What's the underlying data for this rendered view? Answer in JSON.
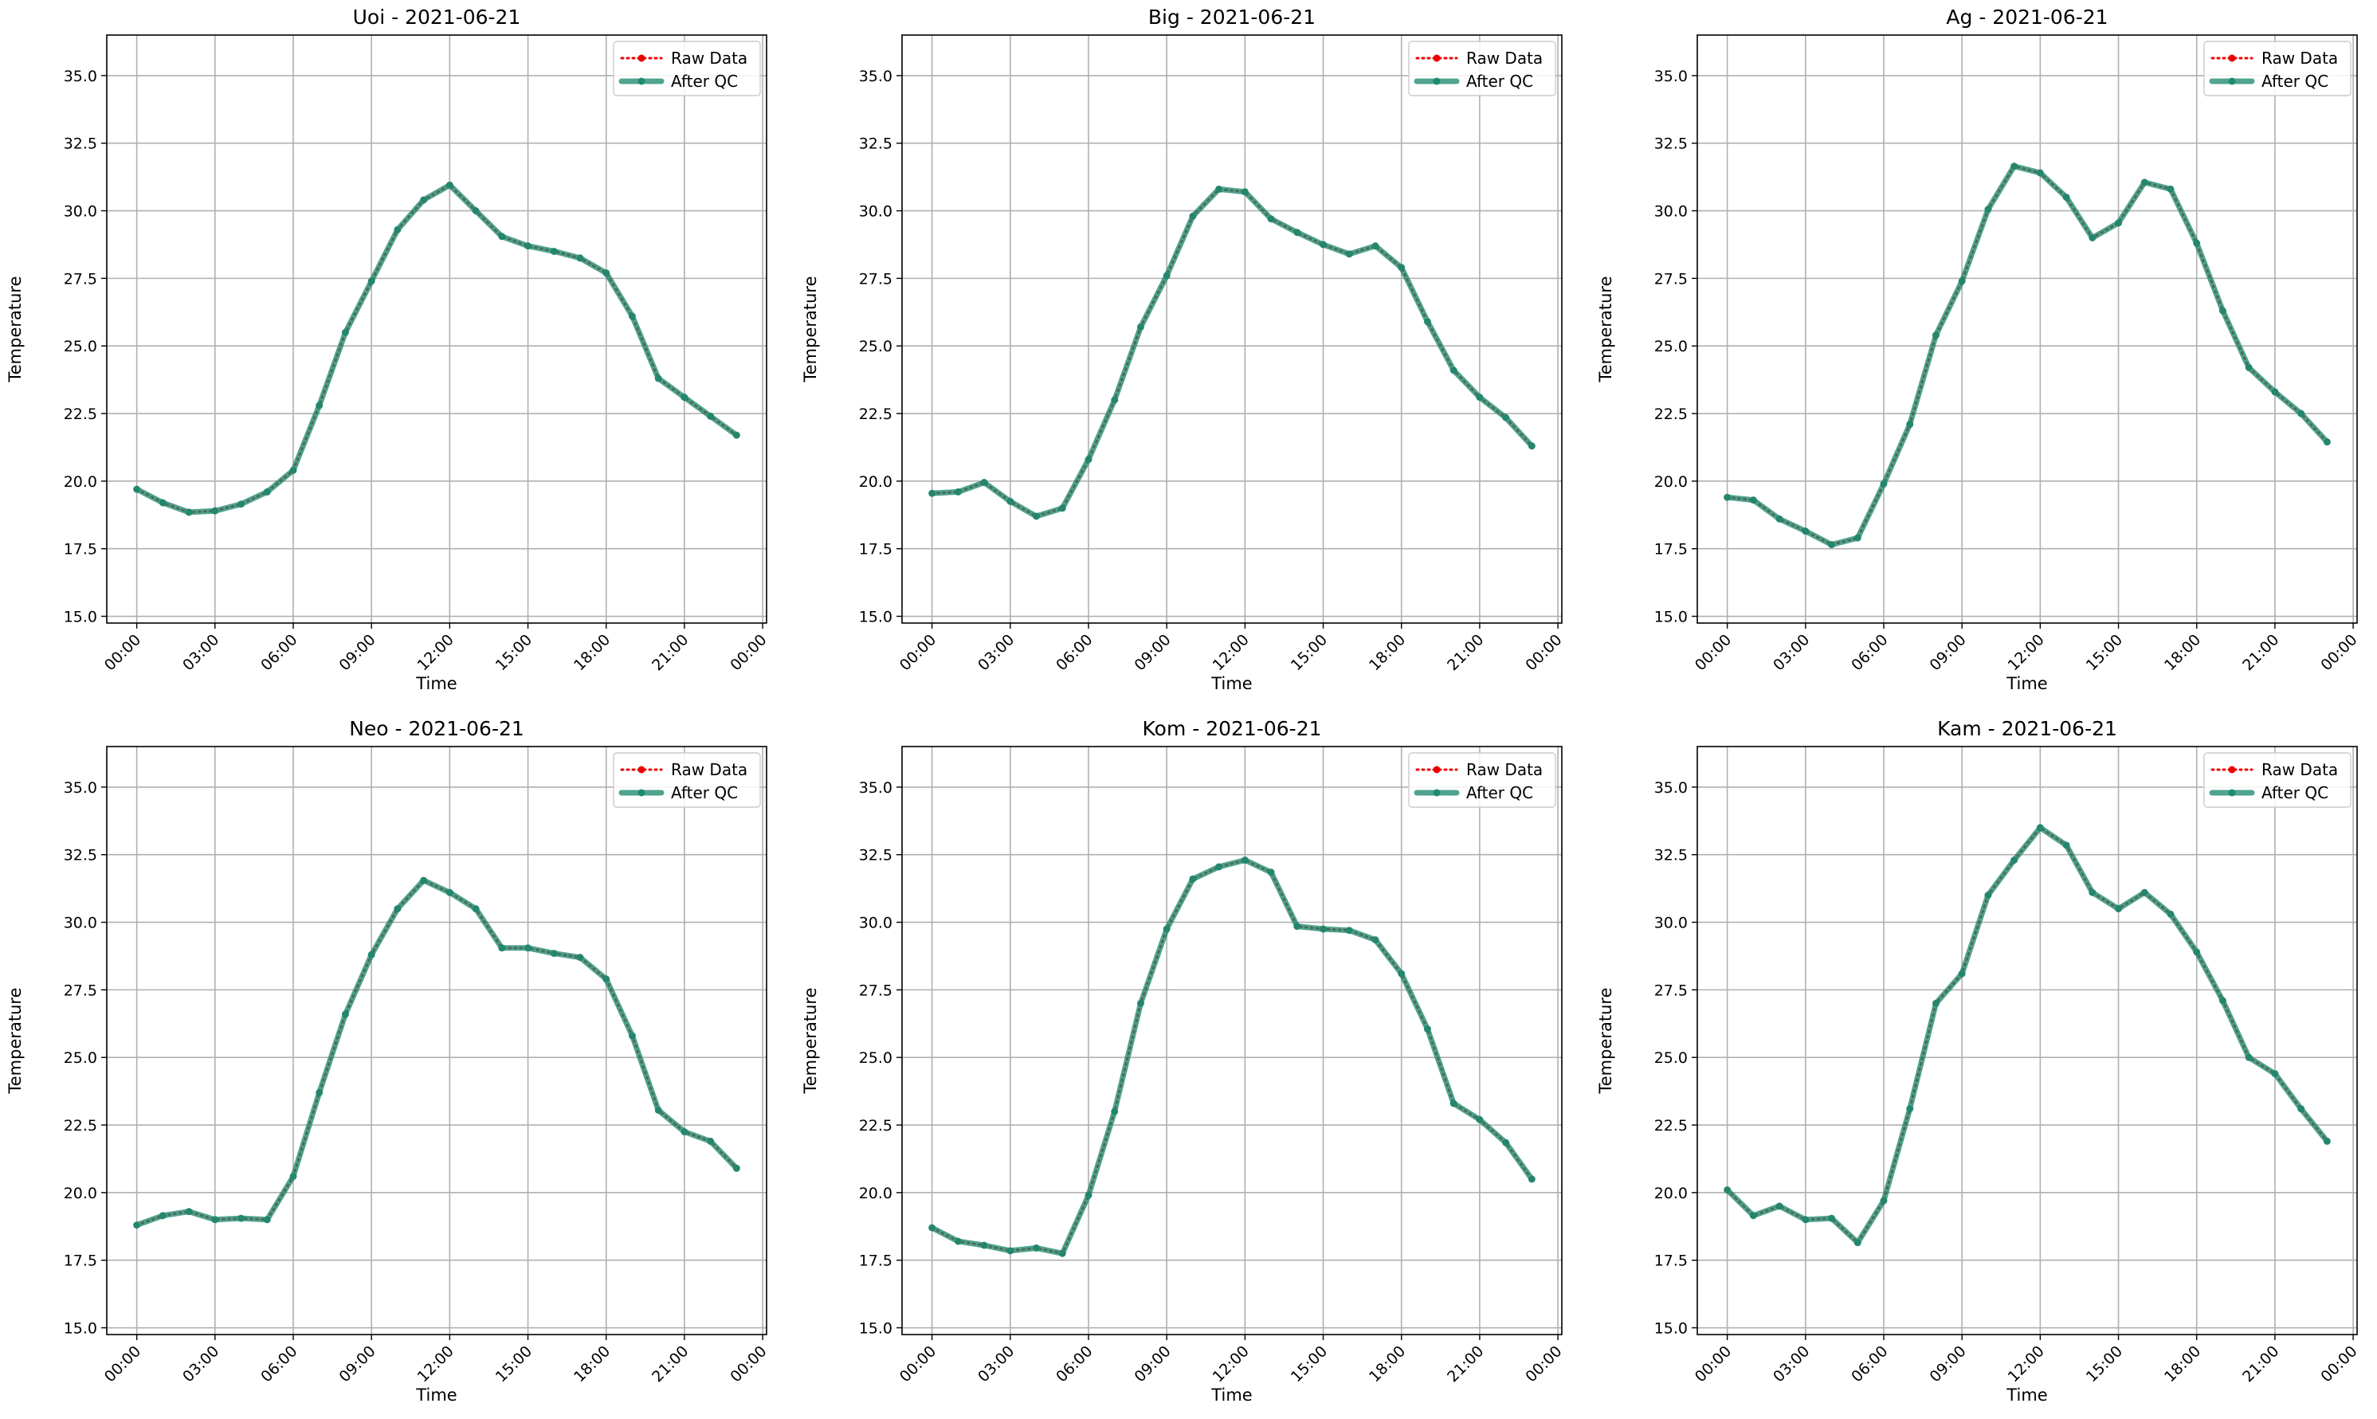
{
  "legend_labels": {
    "raw": "Raw Data",
    "qc": "After QC"
  },
  "colors": {
    "raw": "#ee0000",
    "qc": "#1f8a70",
    "grid": "#b0b0b0",
    "frame": "#000000",
    "legend_border": "#cccccc"
  },
  "chart_data": [
    {
      "type": "line",
      "title": "Uoi - 2021-06-21",
      "xlabel": "Time",
      "ylabel": "Temperature",
      "xlim_hours": [
        -1.15,
        24.15
      ],
      "ylim": [
        14.75,
        36.5
      ],
      "xticks": [
        "00:00",
        "03:00",
        "06:00",
        "09:00",
        "12:00",
        "15:00",
        "18:00",
        "21:00",
        "00:00"
      ],
      "yticks": [
        "15.0",
        "17.5",
        "20.0",
        "22.5",
        "25.0",
        "27.5",
        "30.0",
        "32.5",
        "35.0"
      ],
      "grid": true,
      "legend_position": "upper right",
      "x_hours": [
        0,
        1,
        2,
        3,
        4,
        5,
        6,
        7,
        8,
        9,
        10,
        11,
        12,
        13,
        14,
        15,
        16,
        17,
        18,
        19,
        20,
        21,
        22,
        23
      ],
      "series": [
        {
          "name": "Raw Data",
          "values": [
            19.7,
            19.2,
            18.85,
            18.9,
            19.15,
            19.6,
            20.4,
            22.8,
            25.5,
            27.4,
            29.3,
            30.4,
            30.95,
            30.0,
            29.05,
            28.7,
            28.5,
            28.25,
            27.7,
            26.1,
            23.8,
            23.1,
            22.4,
            21.7
          ]
        },
        {
          "name": "After QC",
          "values": [
            19.7,
            19.2,
            18.85,
            18.9,
            19.15,
            19.6,
            20.4,
            22.8,
            25.5,
            27.4,
            29.3,
            30.4,
            30.95,
            30.0,
            29.05,
            28.7,
            28.5,
            28.25,
            27.7,
            26.1,
            23.8,
            23.1,
            22.4,
            21.7
          ]
        }
      ]
    },
    {
      "type": "line",
      "title": "Big - 2021-06-21",
      "xlabel": "Time",
      "ylabel": "Temperature",
      "xlim_hours": [
        -1.15,
        24.15
      ],
      "ylim": [
        14.75,
        36.5
      ],
      "xticks": [
        "00:00",
        "03:00",
        "06:00",
        "09:00",
        "12:00",
        "15:00",
        "18:00",
        "21:00",
        "00:00"
      ],
      "yticks": [
        "15.0",
        "17.5",
        "20.0",
        "22.5",
        "25.0",
        "27.5",
        "30.0",
        "32.5",
        "35.0"
      ],
      "grid": true,
      "legend_position": "upper right",
      "x_hours": [
        0,
        1,
        2,
        3,
        4,
        5,
        6,
        7,
        8,
        9,
        10,
        11,
        12,
        13,
        14,
        15,
        16,
        17,
        18,
        19,
        20,
        21,
        22,
        23
      ],
      "series": [
        {
          "name": "Raw Data",
          "values": [
            19.55,
            19.6,
            19.95,
            19.25,
            18.7,
            19.0,
            20.8,
            23.0,
            25.7,
            27.6,
            29.8,
            30.8,
            30.7,
            29.7,
            29.2,
            28.75,
            28.4,
            28.7,
            27.9,
            25.9,
            24.1,
            23.1,
            22.35,
            21.3
          ]
        },
        {
          "name": "After QC",
          "values": [
            19.55,
            19.6,
            19.95,
            19.25,
            18.7,
            19.0,
            20.8,
            23.0,
            25.7,
            27.6,
            29.8,
            30.8,
            30.7,
            29.7,
            29.2,
            28.75,
            28.4,
            28.7,
            27.9,
            25.9,
            24.1,
            23.1,
            22.35,
            21.3
          ]
        }
      ]
    },
    {
      "type": "line",
      "title": "Ag - 2021-06-21",
      "xlabel": "Time",
      "ylabel": "Temperature",
      "xlim_hours": [
        -1.15,
        24.15
      ],
      "ylim": [
        14.75,
        36.5
      ],
      "xticks": [
        "00:00",
        "03:00",
        "06:00",
        "09:00",
        "12:00",
        "15:00",
        "18:00",
        "21:00",
        "00:00"
      ],
      "yticks": [
        "15.0",
        "17.5",
        "20.0",
        "22.5",
        "25.0",
        "27.5",
        "30.0",
        "32.5",
        "35.0"
      ],
      "grid": true,
      "legend_position": "upper right",
      "x_hours": [
        0,
        1,
        2,
        3,
        4,
        5,
        6,
        7,
        8,
        9,
        10,
        11,
        12,
        13,
        14,
        15,
        16,
        17,
        18,
        19,
        20,
        21,
        22,
        23
      ],
      "series": [
        {
          "name": "Raw Data",
          "values": [
            19.4,
            19.3,
            18.6,
            18.15,
            17.65,
            17.9,
            19.9,
            22.1,
            25.4,
            27.4,
            30.05,
            31.65,
            31.4,
            30.5,
            29.0,
            29.55,
            31.05,
            30.8,
            28.8,
            26.3,
            24.2,
            23.3,
            22.5,
            21.45
          ]
        },
        {
          "name": "After QC",
          "values": [
            19.4,
            19.3,
            18.6,
            18.15,
            17.65,
            17.9,
            19.9,
            22.1,
            25.4,
            27.4,
            30.05,
            31.65,
            31.4,
            30.5,
            29.0,
            29.55,
            31.05,
            30.8,
            28.8,
            26.3,
            24.2,
            23.3,
            22.5,
            21.45
          ]
        }
      ]
    },
    {
      "type": "line",
      "title": "Neo - 2021-06-21",
      "xlabel": "Time",
      "ylabel": "Temperature",
      "xlim_hours": [
        -1.15,
        24.15
      ],
      "ylim": [
        14.75,
        36.5
      ],
      "xticks": [
        "00:00",
        "03:00",
        "06:00",
        "09:00",
        "12:00",
        "15:00",
        "18:00",
        "21:00",
        "00:00"
      ],
      "yticks": [
        "15.0",
        "17.5",
        "20.0",
        "22.5",
        "25.0",
        "27.5",
        "30.0",
        "32.5",
        "35.0"
      ],
      "grid": true,
      "legend_position": "upper right",
      "x_hours": [
        0,
        1,
        2,
        3,
        4,
        5,
        6,
        7,
        8,
        9,
        10,
        11,
        12,
        13,
        14,
        15,
        16,
        17,
        18,
        19,
        20,
        21,
        22,
        23
      ],
      "series": [
        {
          "name": "Raw Data",
          "values": [
            18.8,
            19.15,
            19.3,
            19.0,
            19.05,
            19.0,
            20.6,
            23.7,
            26.6,
            28.8,
            30.5,
            31.55,
            31.1,
            30.5,
            29.05,
            29.05,
            28.85,
            28.7,
            27.9,
            25.8,
            23.05,
            22.25,
            21.9,
            20.9
          ]
        },
        {
          "name": "After QC",
          "values": [
            18.8,
            19.15,
            19.3,
            19.0,
            19.05,
            19.0,
            20.6,
            23.7,
            26.6,
            28.8,
            30.5,
            31.55,
            31.1,
            30.5,
            29.05,
            29.05,
            28.85,
            28.7,
            27.9,
            25.8,
            23.05,
            22.25,
            21.9,
            20.9
          ]
        }
      ]
    },
    {
      "type": "line",
      "title": "Kom - 2021-06-21",
      "xlabel": "Time",
      "ylabel": "Temperature",
      "xlim_hours": [
        -1.15,
        24.15
      ],
      "ylim": [
        14.75,
        36.5
      ],
      "xticks": [
        "00:00",
        "03:00",
        "06:00",
        "09:00",
        "12:00",
        "15:00",
        "18:00",
        "21:00",
        "00:00"
      ],
      "yticks": [
        "15.0",
        "17.5",
        "20.0",
        "22.5",
        "25.0",
        "27.5",
        "30.0",
        "32.5",
        "35.0"
      ],
      "grid": true,
      "legend_position": "upper right",
      "x_hours": [
        0,
        1,
        2,
        3,
        4,
        5,
        6,
        7,
        8,
        9,
        10,
        11,
        12,
        13,
        14,
        15,
        16,
        17,
        18,
        19,
        20,
        21,
        22,
        23
      ],
      "series": [
        {
          "name": "Raw Data",
          "values": [
            18.7,
            18.2,
            18.05,
            17.85,
            17.95,
            17.75,
            19.9,
            23.0,
            27.0,
            29.75,
            31.6,
            32.05,
            32.3,
            31.85,
            29.85,
            29.75,
            29.7,
            29.35,
            28.1,
            26.05,
            23.3,
            22.7,
            21.85,
            20.5
          ]
        },
        {
          "name": "After QC",
          "values": [
            18.7,
            18.2,
            18.05,
            17.85,
            17.95,
            17.75,
            19.9,
            23.0,
            27.0,
            29.75,
            31.6,
            32.05,
            32.3,
            31.85,
            29.85,
            29.75,
            29.7,
            29.35,
            28.1,
            26.05,
            23.3,
            22.7,
            21.85,
            20.5
          ]
        }
      ]
    },
    {
      "type": "line",
      "title": "Kam - 2021-06-21",
      "xlabel": "Time",
      "ylabel": "Temperature",
      "xlim_hours": [
        -1.15,
        24.15
      ],
      "ylim": [
        14.75,
        36.5
      ],
      "xticks": [
        "00:00",
        "03:00",
        "06:00",
        "09:00",
        "12:00",
        "15:00",
        "18:00",
        "21:00",
        "00:00"
      ],
      "yticks": [
        "15.0",
        "17.5",
        "20.0",
        "22.5",
        "25.0",
        "27.5",
        "30.0",
        "32.5",
        "35.0"
      ],
      "grid": true,
      "legend_position": "upper right",
      "x_hours": [
        0,
        1,
        2,
        3,
        4,
        5,
        6,
        7,
        8,
        9,
        10,
        11,
        12,
        13,
        14,
        15,
        16,
        17,
        18,
        19,
        20,
        21,
        22,
        23
      ],
      "series": [
        {
          "name": "Raw Data",
          "values": [
            20.1,
            19.15,
            19.5,
            19.0,
            19.05,
            18.15,
            19.7,
            23.1,
            27.0,
            28.1,
            31.0,
            32.3,
            33.5,
            32.85,
            31.1,
            30.5,
            31.1,
            30.3,
            28.9,
            27.1,
            25.0,
            24.4,
            23.1,
            21.9
          ]
        },
        {
          "name": "After QC",
          "values": [
            20.1,
            19.15,
            19.5,
            19.0,
            19.05,
            18.15,
            19.7,
            23.1,
            27.0,
            28.1,
            31.0,
            32.3,
            33.5,
            32.85,
            31.1,
            30.5,
            31.1,
            30.3,
            28.9,
            27.1,
            25.0,
            24.4,
            23.1,
            21.9
          ]
        }
      ]
    }
  ]
}
